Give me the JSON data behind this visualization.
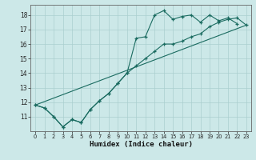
{
  "xlabel": "Humidex (Indice chaleur)",
  "bg_color": "#cce8e8",
  "grid_color": "#aacfcf",
  "line_color": "#1a6b60",
  "xlim": [
    -0.5,
    23.5
  ],
  "ylim": [
    10.0,
    18.7
  ],
  "xticks": [
    0,
    1,
    2,
    3,
    4,
    5,
    6,
    7,
    8,
    9,
    10,
    11,
    12,
    13,
    14,
    15,
    16,
    17,
    18,
    19,
    20,
    21,
    22,
    23
  ],
  "yticks": [
    11,
    12,
    13,
    14,
    15,
    16,
    17,
    18
  ],
  "series1_x": [
    0,
    1,
    2,
    3,
    4,
    5,
    6,
    7,
    8,
    9,
    10,
    11,
    12,
    13,
    14,
    15,
    16,
    17,
    18,
    19,
    20,
    21,
    22
  ],
  "series1_y": [
    11.8,
    11.6,
    11.0,
    10.3,
    10.8,
    10.6,
    11.5,
    12.1,
    12.6,
    13.3,
    14.0,
    16.4,
    16.5,
    18.0,
    18.3,
    17.7,
    17.9,
    18.0,
    17.5,
    18.0,
    17.6,
    17.8,
    17.4
  ],
  "series2_x": [
    0,
    1,
    2,
    3,
    4,
    5,
    6,
    7,
    8,
    9,
    10,
    11,
    12,
    13,
    14,
    15,
    16,
    17,
    18,
    19,
    20,
    21,
    22,
    23
  ],
  "series2_y": [
    11.8,
    11.6,
    11.0,
    10.3,
    10.8,
    10.6,
    11.5,
    12.1,
    12.6,
    13.3,
    14.0,
    14.5,
    15.0,
    15.5,
    16.0,
    16.0,
    16.2,
    16.5,
    16.7,
    17.2,
    17.5,
    17.7,
    17.8,
    17.3
  ],
  "series3_x": [
    0,
    23
  ],
  "series3_y": [
    11.8,
    17.3
  ]
}
